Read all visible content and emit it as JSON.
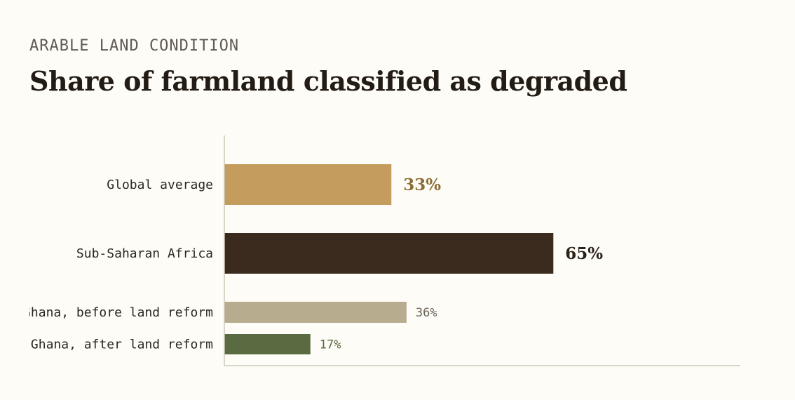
{
  "header": {
    "eyebrow": "ARABLE LAND CONDITION",
    "title": "Share of farmland classified as degraded"
  },
  "chart_data": {
    "type": "bar",
    "orientation": "horizontal",
    "title": "Share of farmland classified as degraded",
    "xlabel": "",
    "ylabel": "",
    "xlim": [
      0,
      100
    ],
    "grid": false,
    "categories": [
      "Global average",
      "Sub-Saharan Africa",
      "Ghana, before land reform",
      "Ghana, after land reform"
    ],
    "values": [
      33,
      65,
      36,
      17
    ],
    "value_labels": [
      "33%",
      "65%",
      "36%",
      "17%"
    ],
    "bar_colors": [
      "#c39c5e",
      "#3b2b1e",
      "#b8ac8f",
      "#5a6b42"
    ],
    "label_colors": [
      "#8c6d36",
      "#2b2119",
      "#6b6457",
      "#5a6b42"
    ]
  }
}
